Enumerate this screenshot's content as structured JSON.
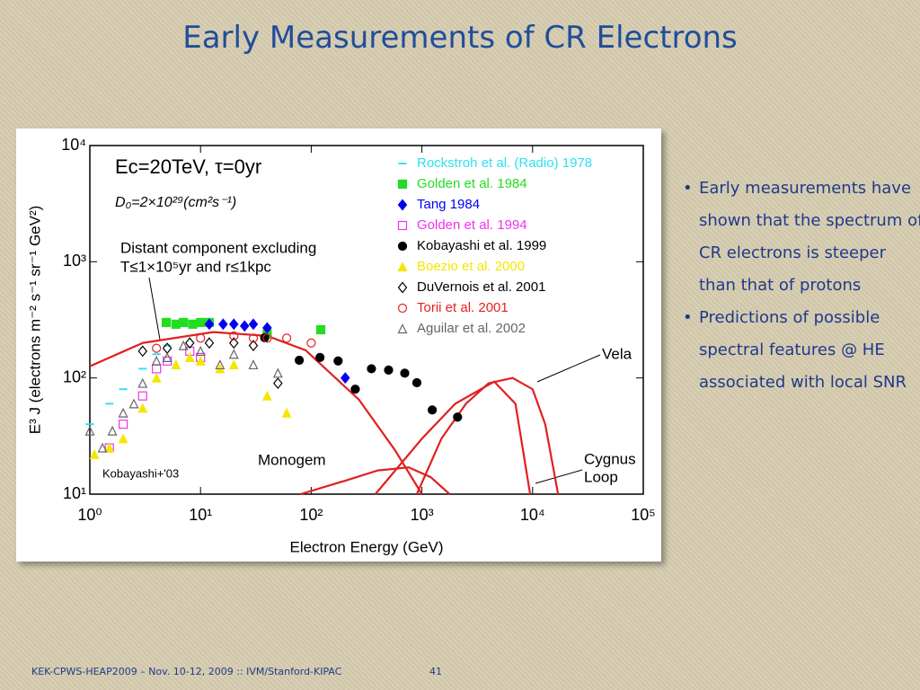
{
  "slide": {
    "title": "Early Measurements of CR Electrons",
    "bullets": [
      "Early measurements have shown that the spectrum of CR electrons is steeper than that of protons",
      "Predictions of possible spectral features @ HE associated with local SNR"
    ],
    "footer": "KEK-CPWS-HEAP2009 – Nov. 10-12, 2009 :: IVM/Stanford-KIPAC",
    "page_number": "41"
  },
  "chart_data": {
    "type": "scatter",
    "xlabel": "Electron Energy (GeV)",
    "ylabel": "E³ J (electrons m⁻² s⁻¹ sr⁻¹ GeV²)",
    "xscale": "log",
    "yscale": "log",
    "xlim": [
      1,
      100000
    ],
    "ylim": [
      10,
      10000
    ],
    "xticks": [
      {
        "value": 1,
        "label": "10⁰"
      },
      {
        "value": 10,
        "label": "10¹"
      },
      {
        "value": 100,
        "label": "10²"
      },
      {
        "value": 1000,
        "label": "10³"
      },
      {
        "value": 10000,
        "label": "10⁴"
      },
      {
        "value": 100000,
        "label": "10⁵"
      }
    ],
    "yticks": [
      {
        "value": 10,
        "label": "10¹"
      },
      {
        "value": 100,
        "label": "10²"
      },
      {
        "value": 1000,
        "label": "10³"
      },
      {
        "value": 10000,
        "label": "10⁴"
      }
    ],
    "params": [
      "Ec=20TeV, τ=0yr",
      "D₀=2×10²⁹(cm²s⁻¹)"
    ],
    "annotations": [
      {
        "lines": [
          "Distant component excluding",
          "T≤1×10⁵yr and r≤1kpc"
        ]
      },
      {
        "lines": [
          "Kobayashi+'03"
        ]
      }
    ],
    "series": [
      {
        "name": "Rockstroh et al. (Radio) 1978",
        "color": "#30e0f0",
        "marker": "dash",
        "x": [
          1,
          1.5,
          2,
          3,
          4,
          5
        ],
        "values": [
          40,
          60,
          80,
          120,
          160,
          190
        ]
      },
      {
        "name": "Golden et al. 1984",
        "color": "#22dd22",
        "marker": "square",
        "x": [
          4.9,
          6,
          7,
          8.5,
          10,
          12,
          40,
          122
        ],
        "values": [
          300,
          290,
          300,
          290,
          300,
          300,
          240,
          260
        ]
      },
      {
        "name": "Tang 1984",
        "color": "#0000ee",
        "marker": "diamond",
        "x": [
          12,
          16,
          20,
          25,
          30,
          40,
          203
        ],
        "values": [
          290,
          290,
          290,
          280,
          290,
          270,
          100
        ]
      },
      {
        "name": "Golden et al. 1994",
        "color": "#ee33ee",
        "marker": "square-open",
        "x": [
          1.5,
          2,
          3,
          4,
          5,
          8,
          10
        ],
        "values": [
          25,
          40,
          70,
          120,
          140,
          170,
          150
        ]
      },
      {
        "name": "Kobayashi et al. 1999",
        "color": "#000000",
        "marker": "circle",
        "x": [
          38,
          78,
          120,
          175,
          250,
          350,
          500,
          700,
          900,
          1240,
          2100
        ],
        "values": [
          222,
          142,
          150,
          140,
          80,
          120,
          117,
          110,
          91,
          53,
          46
        ]
      },
      {
        "name": "Boezio et al. 2000",
        "color": "#f5e600",
        "marker": "triangle",
        "x": [
          1.1,
          1.5,
          2,
          3,
          4,
          6,
          8,
          10,
          15,
          20,
          40,
          60
        ],
        "values": [
          22,
          25,
          30,
          55,
          100,
          130,
          150,
          140,
          120,
          130,
          70,
          50
        ]
      },
      {
        "name": "DuVernois et al. 2001",
        "color": "#000000",
        "marker": "diamond-open",
        "x": [
          3,
          5,
          8,
          12,
          20,
          30,
          50
        ],
        "values": [
          170,
          180,
          200,
          200,
          200,
          190,
          90
        ]
      },
      {
        "name": "Torii et al. 2001",
        "color": "#e62020",
        "marker": "circle-open",
        "x": [
          4,
          10,
          20,
          30,
          40,
          60,
          100
        ],
        "values": [
          180,
          220,
          230,
          220,
          220,
          220,
          200
        ]
      },
      {
        "name": "Aguilar et al. 2002",
        "color": "#666666",
        "marker": "triangle-open",
        "x": [
          1,
          1.3,
          1.6,
          2,
          2.5,
          3,
          4,
          5,
          7,
          10,
          15,
          20,
          30,
          50
        ],
        "values": [
          35,
          25,
          35,
          50,
          60,
          90,
          140,
          150,
          190,
          170,
          130,
          160,
          130,
          110
        ]
      }
    ],
    "model_curves": [
      {
        "color": "#e02020",
        "x": [
          1,
          3,
          13,
          40,
          89,
          270,
          570,
          1000
        ],
        "values": [
          126,
          200,
          248,
          230,
          173,
          65,
          24,
          10
        ]
      },
      {
        "label_lines": [
          "Vela"
        ],
        "color": "#e02020",
        "x": [
          900,
          1500,
          2500,
          4000,
          6600,
          10000,
          13000,
          17000
        ],
        "values": [
          10,
          30,
          60,
          90,
          100,
          80,
          40,
          10
        ]
      },
      {
        "label_lines": [
          "Monogem"
        ],
        "color": "#e02020",
        "x": [
          80,
          200,
          400,
          760,
          1200,
          1780
        ],
        "values": [
          10,
          13,
          16,
          17,
          14,
          10
        ]
      },
      {
        "label_lines": [
          "Cygnus",
          "Loop"
        ],
        "color": "#e02020",
        "x": [
          380,
          1000,
          2000,
          4500,
          7000,
          9500
        ],
        "values": [
          10,
          30,
          60,
          93,
          60,
          10
        ]
      }
    ]
  }
}
